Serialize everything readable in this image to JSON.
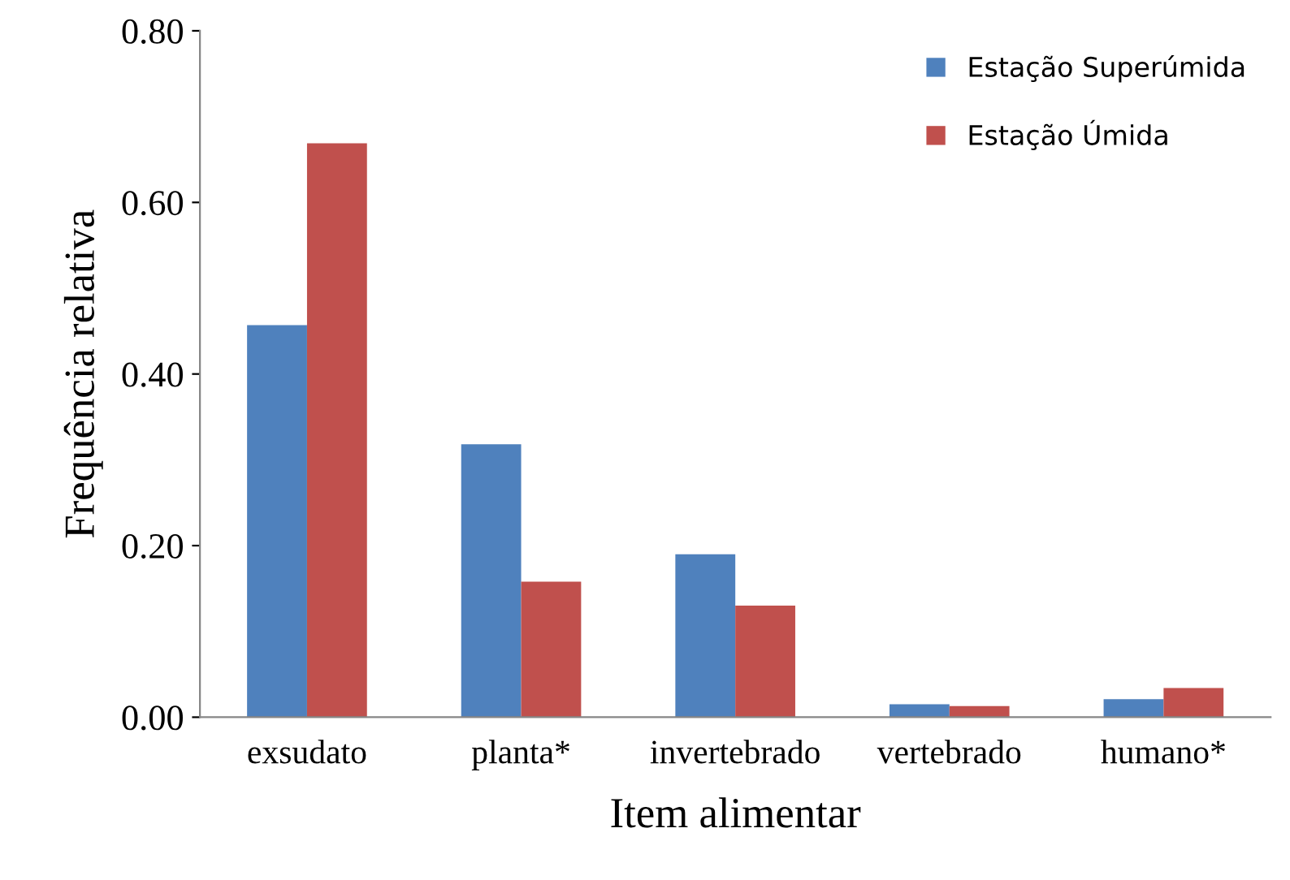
{
  "chart_data": {
    "type": "bar",
    "xlabel": "Item alimentar",
    "ylabel": "Frequência relativa",
    "categories": [
      "exsudato",
      "planta*",
      "invertebrado",
      "vertebrado",
      "humano*"
    ],
    "series": [
      {
        "name": "Estação Superúmida",
        "color": "#4f81bd",
        "values": [
          0.457,
          0.318,
          0.19,
          0.015,
          0.021
        ]
      },
      {
        "name": "Estação Úmida",
        "color": "#c0504d",
        "values": [
          0.669,
          0.158,
          0.13,
          0.013,
          0.034
        ]
      }
    ],
    "ylim": [
      0,
      0.8
    ],
    "yticks": [
      {
        "value": 0,
        "label": "0.00"
      },
      {
        "value": 0.2,
        "label": "0.20"
      },
      {
        "value": 0.4,
        "label": "0.40"
      },
      {
        "value": 0.6,
        "label": "0.60"
      },
      {
        "value": 0.8,
        "label": "0.80"
      }
    ],
    "grid": false,
    "legend": "top right"
  }
}
